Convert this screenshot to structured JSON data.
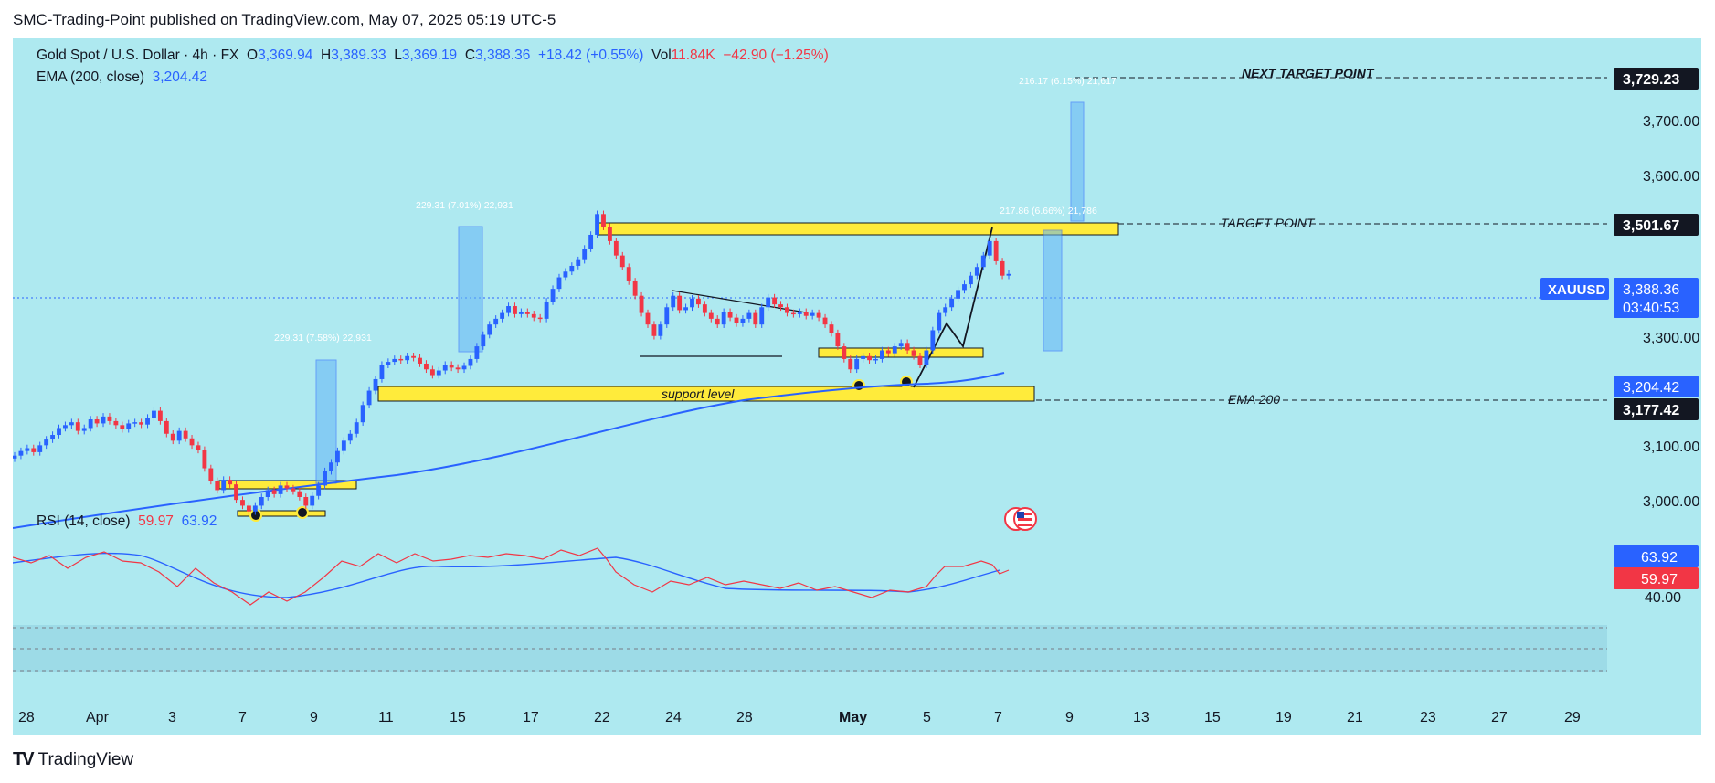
{
  "header": {
    "publish_line": "SMC-Trading-Point published on TradingView.com, May 07, 2025 05:19 UTC-5"
  },
  "footer": {
    "brand": "TradingView"
  },
  "legend": {
    "instrument": "Gold Spot / U.S. Dollar · 4h · FX",
    "o_label": "O",
    "o_value": "3,369.94",
    "h_label": "H",
    "h_value": "3,389.33",
    "l_label": "L",
    "l_value": "3,369.19",
    "c_label": "C",
    "c_value": "3,388.36",
    "change": "+18.42 (+0.55%)",
    "vol_label": "Vol",
    "vol_value": "11.84K",
    "vol_change": "−42.90 (−1.25%)",
    "ema_label": "EMA (200, close)",
    "ema_value": "3,204.42",
    "rsi_label": "RSI (14, close)",
    "rsi_value1": "59.97",
    "rsi_value2": "63.92"
  },
  "price_axis": {
    "ticks": [
      "3,700.00",
      "3,600.00",
      "3,300.00",
      "3,100.00",
      "3,000.00",
      "40.00"
    ],
    "next_target_value": "3,729.23",
    "target_value": "3,501.67",
    "symbol": "XAUUSD",
    "last_price": "3,388.36",
    "countdown": "03:40:53",
    "ema_value": "3,204.42",
    "ema200_level": "3,177.42",
    "rsi_blue_value": "63.92",
    "rsi_red_value": "59.97"
  },
  "time_axis": [
    "28",
    "Apr",
    "3",
    "7",
    "9",
    "11",
    "15",
    "17",
    "22",
    "24",
    "28",
    "May",
    "5",
    "7",
    "9",
    "13",
    "15",
    "19",
    "21",
    "23",
    "27",
    "29"
  ],
  "annotations": {
    "next_target": "NEXT TARGET POINT",
    "target": "TARGET POINT",
    "ema200": "EMA 200",
    "support": "support level",
    "measure1": "229.31 (7.58%) 22,931",
    "measure2": "229.31 (7.01%) 22,931",
    "measure3": "217.86 (6.66%) 21,786",
    "measure4": "216.17 (6.15%) 21,617"
  },
  "colors": {
    "background": "#aee9f0",
    "bull": "#2962ff",
    "bear": "#f23645",
    "ema": "#2962ff",
    "zone": "#ffeb3b",
    "rsi": "#2962ff"
  },
  "chart_data": {
    "type": "candlestick",
    "symbol": "XAUUSD",
    "timeframe": "4h",
    "ylim": [
      2950,
      3760
    ],
    "closes": [
      3072,
      3080,
      3085,
      3078,
      3090,
      3100,
      3108,
      3120,
      3125,
      3130,
      3115,
      3120,
      3135,
      3128,
      3140,
      3132,
      3125,
      3118,
      3128,
      3130,
      3126,
      3138,
      3150,
      3132,
      3110,
      3098,
      3115,
      3102,
      3090,
      3082,
      3050,
      3028,
      3012,
      3030,
      3022,
      2995,
      2985,
      2975,
      2985,
      3000,
      3012,
      3005,
      3020,
      3015,
      3010,
      3000,
      2985,
      3002,
      3020,
      3045,
      3060,
      3080,
      3098,
      3110,
      3130,
      3160,
      3185,
      3205,
      3230,
      3235,
      3240,
      3238,
      3245,
      3242,
      3232,
      3222,
      3212,
      3220,
      3230,
      3225,
      3222,
      3228,
      3240,
      3262,
      3282,
      3300,
      3310,
      3320,
      3332,
      3318,
      3322,
      3318,
      3312,
      3310,
      3340,
      3362,
      3382,
      3392,
      3402,
      3412,
      3432,
      3456,
      3492,
      3470,
      3445,
      3420,
      3400,
      3375,
      3350,
      3320,
      3300,
      3280,
      3300,
      3330,
      3350,
      3325,
      3330,
      3345,
      3335,
      3320,
      3310,
      3300,
      3322,
      3312,
      3302,
      3310,
      3320,
      3300,
      3330,
      3347,
      3335,
      3330,
      3320,
      3318,
      3322,
      3315,
      3320,
      3312,
      3300,
      3285,
      3262,
      3240,
      3222,
      3240,
      3245,
      3238,
      3240,
      3255,
      3250,
      3262,
      3268,
      3255,
      3245,
      3230,
      3255,
      3290,
      3320,
      3330,
      3345,
      3360,
      3370,
      3385,
      3400,
      3420,
      3445,
      3410,
      3385,
      3388
    ]
  }
}
